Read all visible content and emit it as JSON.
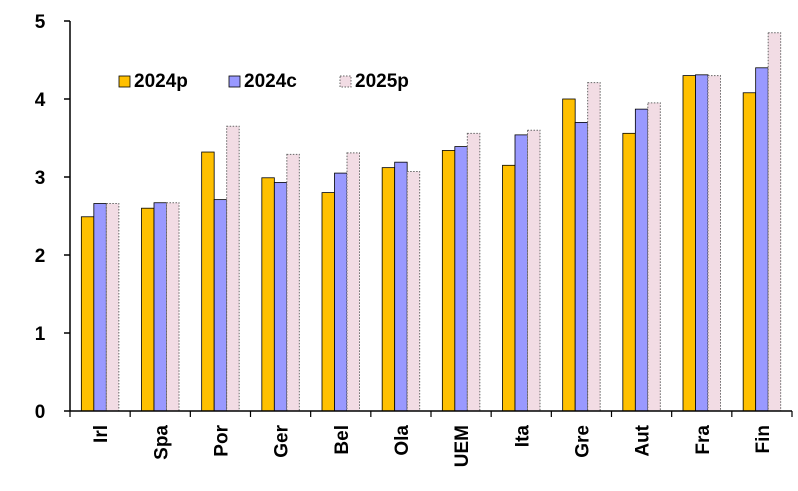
{
  "chart_data": {
    "type": "bar",
    "title": "",
    "xlabel": "",
    "ylabel": "",
    "ylim": [
      0,
      5
    ],
    "yticks": [
      "0",
      "1",
      "2",
      "3",
      "4",
      "5"
    ],
    "grid": false,
    "legend_position": "top-left",
    "categories": [
      "Irl",
      "Spa",
      "Por",
      "Ger",
      "Bel",
      "Ola",
      "UEM",
      "Ita",
      "Gre",
      "Aut",
      "Fra",
      "Fin"
    ],
    "series": [
      {
        "name": "2024p",
        "color": "#FFC000",
        "style": "solid",
        "values": [
          2.49,
          2.6,
          3.32,
          2.99,
          2.8,
          3.12,
          3.34,
          3.15,
          4.0,
          3.56,
          4.3,
          4.08
        ]
      },
      {
        "name": "2024c",
        "color": "#9999FF",
        "style": "solid",
        "values": [
          2.66,
          2.67,
          2.71,
          2.93,
          3.05,
          3.19,
          3.39,
          3.54,
          3.7,
          3.87,
          4.31,
          4.4
        ]
      },
      {
        "name": "2025p",
        "color": "#F2DCE4",
        "style": "dotted",
        "values": [
          2.66,
          2.67,
          3.65,
          3.29,
          3.31,
          3.07,
          3.56,
          3.6,
          4.21,
          3.95,
          4.3,
          4.85
        ]
      }
    ]
  }
}
